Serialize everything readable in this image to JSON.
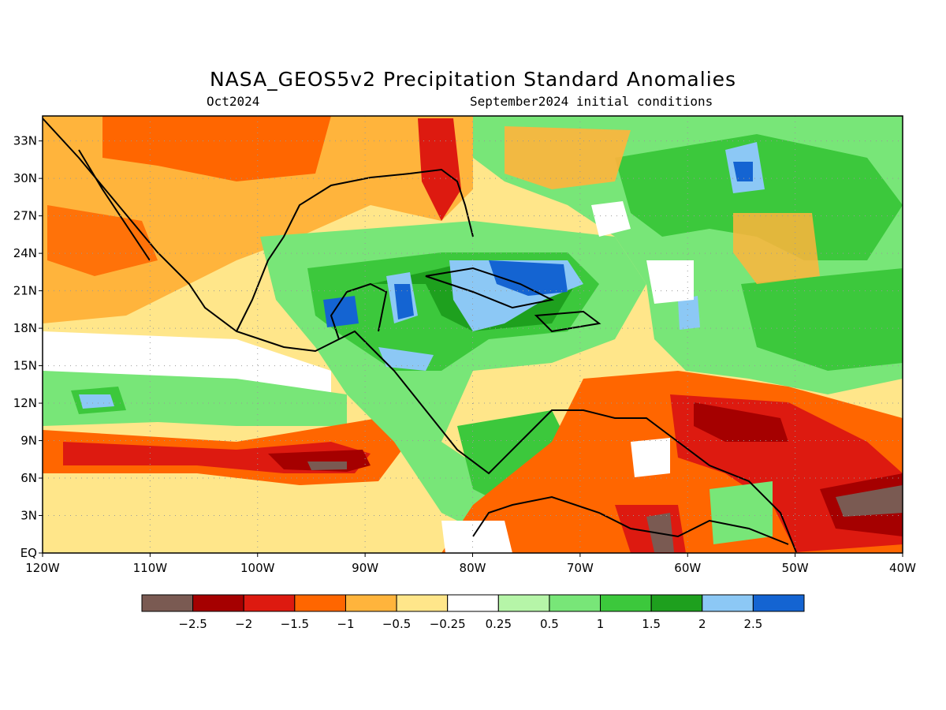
{
  "title": "NASA_GEOS5v2 Precipitation Standard Anomalies",
  "subtitle_left": "Oct2024",
  "subtitle_right": "September2024 initial conditions",
  "map": {
    "lon_range": [
      -120,
      -40
    ],
    "lat_range": [
      0,
      35
    ],
    "lat_labels": [
      "EQ",
      "3N",
      "6N",
      "9N",
      "12N",
      "15N",
      "18N",
      "21N",
      "24N",
      "27N",
      "30N",
      "33N"
    ],
    "lat_values": [
      0,
      3,
      6,
      9,
      12,
      15,
      18,
      21,
      24,
      27,
      30,
      33
    ],
    "lon_labels": [
      "120W",
      "110W",
      "100W",
      "90W",
      "80W",
      "70W",
      "60W",
      "50W",
      "40W"
    ],
    "lon_values": [
      -120,
      -110,
      -100,
      -90,
      -80,
      -70,
      -60,
      -50,
      -40
    ],
    "gridlines": "dotted"
  },
  "colorbar": {
    "labels": [
      "-2.5",
      "-2",
      "-1.5",
      "-1",
      "-0.5",
      "-0.25",
      "0.25",
      "0.5",
      "1",
      "1.5",
      "2",
      "2.5"
    ],
    "colors": [
      "#7a5a52",
      "#a50000",
      "#dd1a10",
      "#ff6600",
      "#ffb43c",
      "#ffe68a",
      "#ffffff",
      "#b6f5a8",
      "#78e678",
      "#3cc83c",
      "#1ea01e",
      "#8cc8f5",
      "#1464d2"
    ]
  }
}
